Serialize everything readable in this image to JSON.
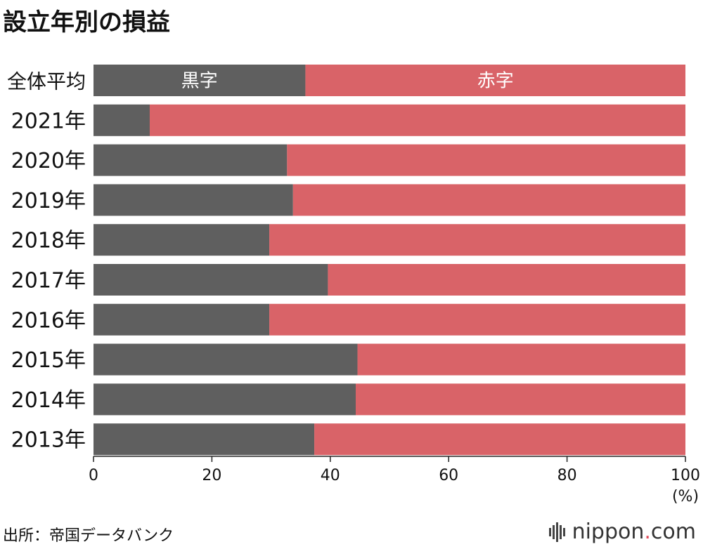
{
  "title": "設立年別の損益",
  "source": "出所：帝国データバンク",
  "logo": {
    "name": "nippon",
    "dot": ".",
    "tld": "com"
  },
  "colors": {
    "black": "#5f5f5f",
    "red": "#d96368",
    "axis": "#222222"
  },
  "chart_data": {
    "type": "bar",
    "orientation": "horizontal",
    "stacked": true,
    "categories": [
      "全体平均",
      "2021年",
      "2020年",
      "2019年",
      "2018年",
      "2017年",
      "2016年",
      "2015年",
      "2014年",
      "2013年"
    ],
    "series": [
      {
        "name": "黒字",
        "values": [
          35.8,
          9.5,
          32.7,
          33.7,
          29.7,
          39.6,
          29.7,
          44.6,
          44.3,
          37.3
        ]
      },
      {
        "name": "赤字",
        "values": [
          64.2,
          90.5,
          67.3,
          66.3,
          70.3,
          60.4,
          70.3,
          55.4,
          55.7,
          62.7
        ]
      }
    ],
    "xlim": [
      0,
      100
    ],
    "xticks": [
      "0",
      "20",
      "40",
      "60",
      "80",
      "100"
    ],
    "xunit": "(%)",
    "title": "設立年別の損益",
    "grid": false
  }
}
